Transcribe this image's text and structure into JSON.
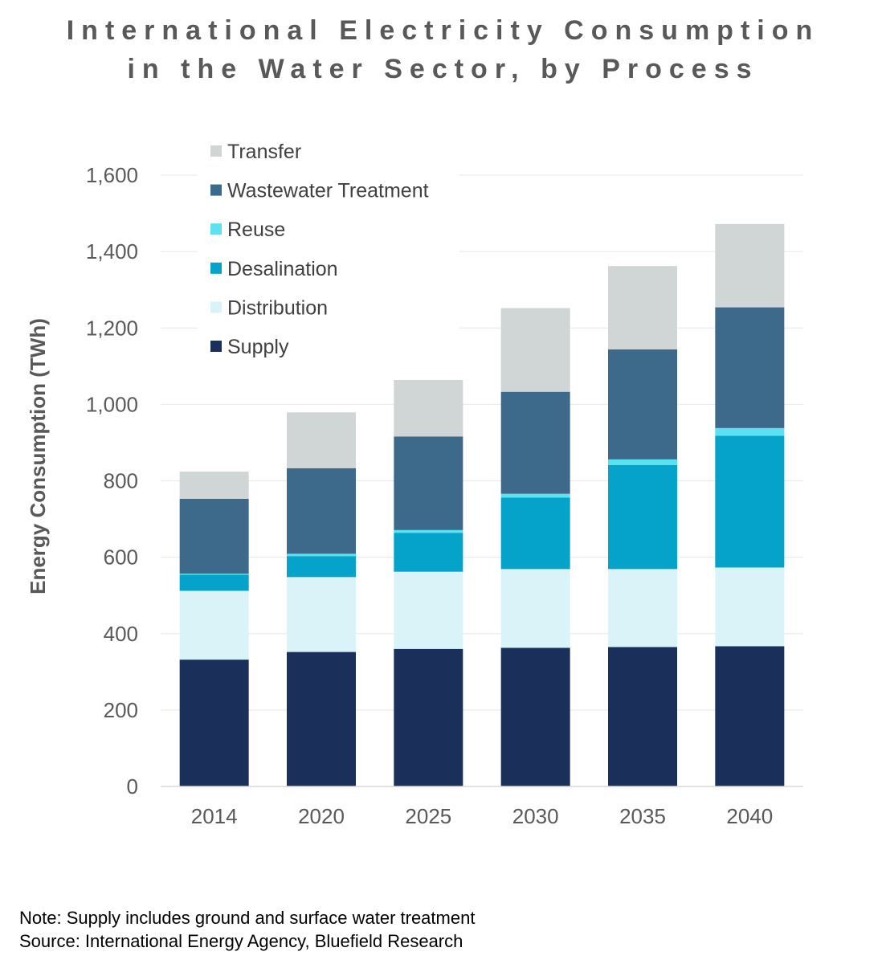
{
  "chart_data": {
    "type": "bar",
    "stacked": true,
    "title_lines": [
      "International Electricity Consumption",
      "in the Water Sector, by Process"
    ],
    "xlabel": "",
    "ylabel": "Energy Consumption (TWh)",
    "ylim": [
      0,
      1600
    ],
    "yticks": [
      0,
      200,
      400,
      600,
      800,
      1000,
      1200,
      1400,
      1600
    ],
    "ytick_labels": [
      "0",
      "200",
      "400",
      "600",
      "800",
      "1,000",
      "1,200",
      "1,400",
      "1,600"
    ],
    "grid": true,
    "legend_position": "top-left",
    "categories": [
      "2014",
      "2020",
      "2025",
      "2030",
      "2035",
      "2040"
    ],
    "series": [
      {
        "name": "Supply",
        "color": "#1a2f5a",
        "values": [
          332,
          352,
          360,
          363,
          365,
          367
        ]
      },
      {
        "name": "Distribution",
        "color": "#d9f3f9",
        "values": [
          180,
          196,
          202,
          206,
          204,
          206
        ]
      },
      {
        "name": "Desalination",
        "color": "#05a3c9",
        "values": [
          42,
          55,
          102,
          187,
          272,
          345
        ]
      },
      {
        "name": "Reuse",
        "color": "#5ae1f2",
        "values": [
          3,
          6,
          7,
          10,
          15,
          20
        ]
      },
      {
        "name": "Wastewater Treatment",
        "color": "#3d6a8b",
        "values": [
          196,
          224,
          245,
          267,
          288,
          316
        ]
      },
      {
        "name": "Transfer",
        "color": "#d0d5d6",
        "values": [
          71,
          146,
          148,
          219,
          218,
          218
        ]
      }
    ]
  },
  "notes": {
    "note": "Note: Supply includes ground and surface water treatment",
    "source": "Source: International Energy Agency, Bluefield Research"
  }
}
